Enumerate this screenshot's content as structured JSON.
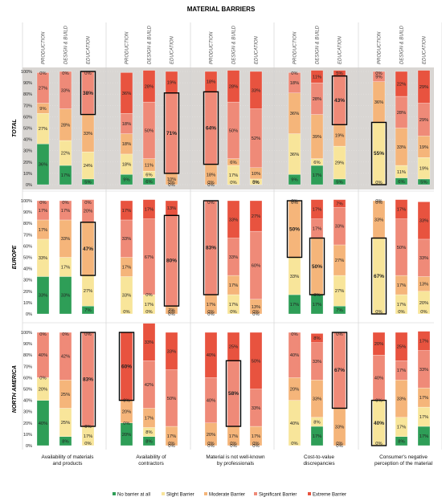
{
  "chart_data": {
    "type": "bar",
    "stacked": true,
    "title": "MATERIAL BARRIERS",
    "categories": [
      "Availability of materials and products",
      "Availability of contractors",
      "Material is not well-known by professionals",
      "Cost-to-value discrepancies",
      "Consumer's negative perception of the material"
    ],
    "stakeholders": [
      "PRODUCTION",
      "DESIGN & BUILD",
      "EDUCATION"
    ],
    "regions": [
      "TOTAL",
      "EUROPE",
      "NORTH AMERICA"
    ],
    "levels": [
      "No barrier at all",
      "Slight Barrier",
      "Moderate Barrier",
      "Significant Barrier",
      "Extreme Barrier"
    ],
    "colors": {
      "No barrier at all": "#2e9e57",
      "Slight Barrier": "#f8e59a",
      "Moderate Barrier": "#f5b57a",
      "Significant Barrier": "#ef8a78",
      "Extreme Barrier": "#e8533f",
      "total_bg": "#d9d6d3",
      "highlight": "#000000"
    },
    "y_ticks": [
      "0%",
      "10%",
      "20%",
      "30%",
      "40%",
      "50%",
      "60%",
      "70%",
      "80%",
      "90%",
      "100%"
    ],
    "ylim": [
      0,
      100
    ],
    "legend_position": "bottom",
    "bars": [
      {
        "region": "TOTAL",
        "category": 0,
        "stakeholder": "PRODUCTION",
        "values": [
          36,
          27,
          9,
          27,
          0
        ],
        "labels": [
          "36%",
          "27%",
          "9%",
          "27%",
          "0%"
        ],
        "highlight": null
      },
      {
        "region": "TOTAL",
        "category": 0,
        "stakeholder": "DESIGN & BUILD",
        "values": [
          17,
          22,
          28,
          33,
          0
        ],
        "labels": [
          "17%",
          "22%",
          "28%",
          "33%",
          "0%"
        ],
        "highlight": null
      },
      {
        "region": "TOTAL",
        "category": 0,
        "stakeholder": "EDUCATION",
        "values": [
          5,
          24,
          33,
          38,
          0
        ],
        "labels": [
          "5%",
          "24%",
          "33%",
          "38%",
          "0%"
        ],
        "highlight": 3
      },
      {
        "region": "TOTAL",
        "category": 1,
        "stakeholder": "PRODUCTION",
        "values": [
          9,
          18,
          18,
          18,
          36
        ],
        "labels": [
          "9%",
          "18%",
          "18%",
          "18%",
          "36%"
        ],
        "highlight": null
      },
      {
        "region": "TOTAL",
        "category": 1,
        "stakeholder": "DESIGN & BUILD",
        "values": [
          6,
          6,
          11,
          50,
          28
        ],
        "labels": [
          "6%",
          "6%",
          "11%",
          "50%",
          "28%"
        ],
        "highlight": null
      },
      {
        "region": "TOTAL",
        "category": 1,
        "stakeholder": "EDUCATION",
        "values": [
          0,
          0,
          10,
          71,
          19
        ],
        "labels": [
          "0%",
          "0%",
          "10%",
          "71%",
          "19%"
        ],
        "highlight": 3
      },
      {
        "region": "TOTAL",
        "category": 2,
        "stakeholder": "PRODUCTION",
        "values": [
          0,
          0,
          18,
          64,
          18
        ],
        "labels": [
          "0%",
          "0%",
          "18%",
          "64%",
          "18%"
        ],
        "highlight": 3
      },
      {
        "region": "TOTAL",
        "category": 2,
        "stakeholder": "DESIGN & BUILD",
        "values": [
          0,
          17,
          6,
          50,
          28
        ],
        "labels": [
          "0%",
          "17%",
          "6%",
          "50%",
          "28%"
        ],
        "highlight": null
      },
      {
        "region": "TOTAL",
        "category": 2,
        "stakeholder": "EDUCATION",
        "values": [
          0,
          5,
          10,
          52,
          33
        ],
        "labels": [
          "0%",
          "5%",
          "10%",
          "52%",
          "33%"
        ],
        "highlight": null
      },
      {
        "region": "TOTAL",
        "category": 3,
        "stakeholder": "PRODUCTION",
        "values": [
          9,
          36,
          36,
          18,
          0
        ],
        "labels": [
          "9%",
          "36%",
          "36%",
          "18%",
          "0%"
        ],
        "highlight": null
      },
      {
        "region": "TOTAL",
        "category": 3,
        "stakeholder": "DESIGN & BUILD",
        "values": [
          17,
          6,
          39,
          28,
          11
        ],
        "labels": [
          "17%",
          "6%",
          "39%",
          "28%",
          "11%"
        ],
        "highlight": null
      },
      {
        "region": "TOTAL",
        "category": 3,
        "stakeholder": "EDUCATION",
        "values": [
          5,
          29,
          19,
          43,
          5
        ],
        "labels": [
          "5%",
          "29%",
          "19%",
          "43%",
          "5%"
        ],
        "highlight": 3
      },
      {
        "region": "TOTAL",
        "category": 4,
        "stakeholder": "PRODUCTION",
        "values": [
          0,
          55,
          36,
          9,
          0
        ],
        "labels": [
          "0%",
          "55%",
          "36%",
          "9%",
          "0%"
        ],
        "highlight": 1
      },
      {
        "region": "TOTAL",
        "category": 4,
        "stakeholder": "DESIGN & BUILD",
        "values": [
          6,
          11,
          33,
          28,
          22
        ],
        "labels": [
          "6%",
          "11%",
          "33%",
          "28%",
          "22%"
        ],
        "highlight": null
      },
      {
        "region": "TOTAL",
        "category": 4,
        "stakeholder": "EDUCATION",
        "values": [
          5,
          19,
          19,
          29,
          29
        ],
        "labels": [
          "5%",
          "19%",
          "19%",
          "29%",
          "29%"
        ],
        "highlight": null
      },
      {
        "region": "EUROPE",
        "category": 0,
        "stakeholder": "PRODUCTION",
        "values": [
          33,
          33,
          17,
          17,
          0
        ],
        "labels": [
          "33%",
          "33%",
          "17%",
          "17%",
          "0%"
        ],
        "highlight": null
      },
      {
        "region": "EUROPE",
        "category": 0,
        "stakeholder": "DESIGN & BUILD",
        "values": [
          33,
          17,
          33,
          17,
          0
        ],
        "labels": [
          "33%",
          "17%",
          "33%",
          "17%",
          "0%"
        ],
        "highlight": null
      },
      {
        "region": "EUROPE",
        "category": 0,
        "stakeholder": "EDUCATION",
        "values": [
          7,
          27,
          47,
          20,
          0
        ],
        "labels": [
          "7%",
          "27%",
          "47%",
          "20%",
          "0%"
        ],
        "highlight": 2
      },
      {
        "region": "EUROPE",
        "category": 1,
        "stakeholder": "PRODUCTION",
        "values": [
          0,
          33,
          17,
          33,
          17
        ],
        "labels": [
          "0%",
          "33%",
          "17%",
          "33%",
          "17%"
        ],
        "highlight": null
      },
      {
        "region": "EUROPE",
        "category": 1,
        "stakeholder": "DESIGN & BUILD",
        "values": [
          0,
          17,
          0,
          67,
          17
        ],
        "labels": [
          "0%",
          "17%",
          "0%",
          "67%",
          "17%"
        ],
        "highlight": null
      },
      {
        "region": "EUROPE",
        "category": 1,
        "stakeholder": "EDUCATION",
        "values": [
          0,
          0,
          7,
          80,
          13
        ],
        "labels": [
          "0%",
          "0%",
          "7%",
          "80%",
          "13%"
        ],
        "highlight": 3
      },
      {
        "region": "EUROPE",
        "category": 2,
        "stakeholder": "PRODUCTION",
        "values": [
          0,
          0,
          17,
          83,
          0
        ],
        "labels": [
          "0%",
          "0%",
          "17%",
          "83%",
          "0%"
        ],
        "highlight": 3
      },
      {
        "region": "EUROPE",
        "category": 2,
        "stakeholder": "DESIGN & BUILD",
        "values": [
          0,
          17,
          17,
          33,
          33
        ],
        "labels": [
          "0%",
          "17%",
          "17%",
          "33%",
          "33%"
        ],
        "highlight": null
      },
      {
        "region": "EUROPE",
        "category": 2,
        "stakeholder": "EDUCATION",
        "values": [
          0,
          0,
          13,
          60,
          27
        ],
        "labels": [
          "0%",
          "0%",
          "13%",
          "60%",
          "27%"
        ],
        "highlight": null
      },
      {
        "region": "EUROPE",
        "category": 3,
        "stakeholder": "PRODUCTION",
        "values": [
          17,
          33,
          50,
          0,
          0
        ],
        "labels": [
          "17%",
          "33%",
          "50%",
          "0%",
          "0%"
        ],
        "highlight": 2
      },
      {
        "region": "EUROPE",
        "category": 3,
        "stakeholder": "DESIGN & BUILD",
        "values": [
          17,
          0,
          50,
          17,
          17
        ],
        "labels": [
          "17%",
          "0%",
          "50%",
          "17%",
          "17%"
        ],
        "highlight": 2
      },
      {
        "region": "EUROPE",
        "category": 3,
        "stakeholder": "EDUCATION",
        "values": [
          7,
          27,
          27,
          33,
          7
        ],
        "labels": [
          "7%",
          "27%",
          "27%",
          "33%",
          "7%"
        ],
        "highlight": null
      },
      {
        "region": "EUROPE",
        "category": 4,
        "stakeholder": "PRODUCTION",
        "values": [
          0,
          67,
          33,
          0,
          0
        ],
        "labels": [
          "0%",
          "67%",
          "33%",
          "0%",
          "0%"
        ],
        "highlight": 1
      },
      {
        "region": "EUROPE",
        "category": 4,
        "stakeholder": "DESIGN & BUILD",
        "values": [
          0,
          17,
          17,
          50,
          17
        ],
        "labels": [
          "0%",
          "17%",
          "17%",
          "50%",
          "17%"
        ],
        "highlight": null
      },
      {
        "region": "EUROPE",
        "category": 4,
        "stakeholder": "EDUCATION",
        "values": [
          0,
          20,
          13,
          33,
          33
        ],
        "labels": [
          "0%",
          "20%",
          "13%",
          "33%",
          "33%"
        ],
        "highlight": null
      },
      {
        "region": "NORTH AMERICA",
        "category": 0,
        "stakeholder": "PRODUCTION",
        "values": [
          40,
          20,
          0,
          40,
          0
        ],
        "labels": [
          "40%",
          "20%",
          "0%",
          "40%",
          "0%"
        ],
        "highlight": null
      },
      {
        "region": "NORTH AMERICA",
        "category": 0,
        "stakeholder": "DESIGN & BUILD",
        "values": [
          8,
          25,
          25,
          42,
          0
        ],
        "labels": [
          "8%",
          "25%",
          "25%",
          "42%",
          "0%"
        ],
        "highlight": null
      },
      {
        "region": "NORTH AMERICA",
        "category": 0,
        "stakeholder": "EDUCATION",
        "values": [
          0,
          17,
          0,
          83,
          0
        ],
        "labels": [
          "0%",
          "17%",
          "0%",
          "83%",
          "0%"
        ],
        "highlight": 3
      },
      {
        "region": "NORTH AMERICA",
        "category": 1,
        "stakeholder": "PRODUCTION",
        "values": [
          20,
          0,
          20,
          0,
          60
        ],
        "labels": [
          "20%",
          "0%",
          "20%",
          "0%",
          "60%"
        ],
        "highlight": 4
      },
      {
        "region": "NORTH AMERICA",
        "category": 1,
        "stakeholder": "DESIGN & BUILD",
        "values": [
          8,
          8,
          17,
          42,
          33
        ],
        "labels": [
          "8%",
          "8%",
          "17%",
          "42%",
          "33%"
        ],
        "highlight": null
      },
      {
        "region": "NORTH AMERICA",
        "category": 1,
        "stakeholder": "EDUCATION",
        "values": [
          0,
          0,
          17,
          50,
          33
        ],
        "labels": [
          "0%",
          "0%",
          "17%",
          "50%",
          "33%"
        ],
        "highlight": null
      },
      {
        "region": "NORTH AMERICA",
        "category": 2,
        "stakeholder": "PRODUCTION",
        "values": [
          0,
          0,
          20,
          40,
          40
        ],
        "labels": [
          "0%",
          "0%",
          "20%",
          "40%",
          "40%"
        ],
        "highlight": null
      },
      {
        "region": "NORTH AMERICA",
        "category": 2,
        "stakeholder": "DESIGN & BUILD",
        "values": [
          0,
          0,
          17,
          58,
          25
        ],
        "labels": [
          "0%",
          "0%",
          "17%",
          "58%",
          "25%"
        ],
        "highlight": 3
      },
      {
        "region": "NORTH AMERICA",
        "category": 2,
        "stakeholder": "EDUCATION",
        "values": [
          0,
          0,
          17,
          33,
          50
        ],
        "labels": [
          "0%",
          "0%",
          "17%",
          "33%",
          "50%"
        ],
        "highlight": null
      },
      {
        "region": "NORTH AMERICA",
        "category": 3,
        "stakeholder": "PRODUCTION",
        "values": [
          0,
          40,
          20,
          40,
          0
        ],
        "labels": [
          "0%",
          "40%",
          "20%",
          "40%",
          "0%"
        ],
        "highlight": null
      },
      {
        "region": "NORTH AMERICA",
        "category": 3,
        "stakeholder": "DESIGN & BUILD",
        "values": [
          17,
          8,
          33,
          33,
          8
        ],
        "labels": [
          "17%",
          "8%",
          "33%",
          "33%",
          "8%"
        ],
        "highlight": null
      },
      {
        "region": "NORTH AMERICA",
        "category": 3,
        "stakeholder": "EDUCATION",
        "values": [
          0,
          0,
          33,
          67,
          0
        ],
        "labels": [
          "0%",
          "0%",
          "33%",
          "67%",
          "0%"
        ],
        "highlight": 3
      },
      {
        "region": "NORTH AMERICA",
        "category": 4,
        "stakeholder": "PRODUCTION",
        "values": [
          0,
          40,
          0,
          40,
          20
        ],
        "labels": [
          "0%",
          "40%",
          "0%",
          "40%",
          "20%"
        ],
        "highlight": 1
      },
      {
        "region": "NORTH AMERICA",
        "category": 4,
        "stakeholder": "DESIGN & BUILD",
        "values": [
          8,
          17,
          33,
          17,
          25
        ],
        "labels": [
          "8%",
          "17%",
          "33%",
          "17%",
          "25%"
        ],
        "highlight": null
      },
      {
        "region": "NORTH AMERICA",
        "category": 4,
        "stakeholder": "EDUCATION",
        "values": [
          17,
          17,
          17,
          33,
          17
        ],
        "labels": [
          "17%",
          "17%",
          "17%",
          "33%",
          "17%"
        ],
        "highlight": null
      }
    ]
  }
}
